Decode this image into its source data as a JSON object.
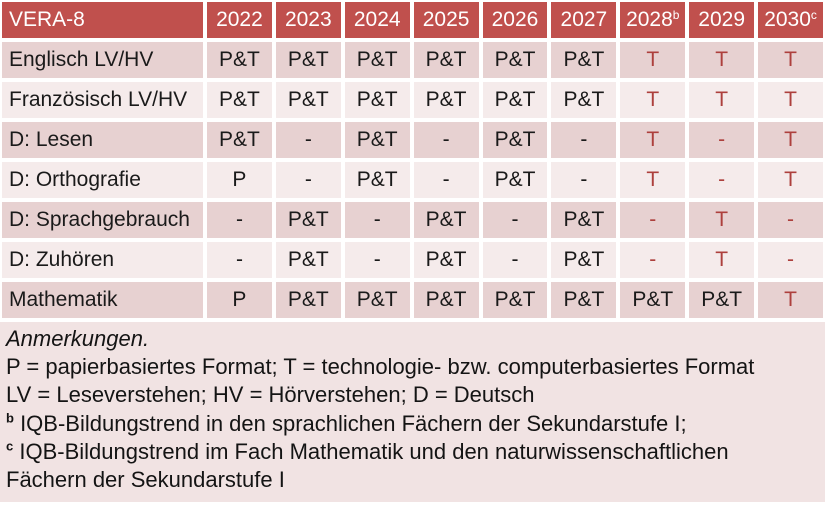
{
  "colors": {
    "header_bg": "#c0504d",
    "row_dark": "#e7d1d1",
    "row_light": "#f5ebeb",
    "notes_bg": "#f1e3e3",
    "red_text": "#ad403d",
    "body_text": "#1a1a1a"
  },
  "table": {
    "header": {
      "label": "VERA-8",
      "years": [
        {
          "text": "2022"
        },
        {
          "text": "2023"
        },
        {
          "text": "2024"
        },
        {
          "text": "2025"
        },
        {
          "text": "2026"
        },
        {
          "text": "2027"
        },
        {
          "text": "2028",
          "sup": "b"
        },
        {
          "text": "2029"
        },
        {
          "text": "2030",
          "sup": "c"
        }
      ]
    },
    "rows": [
      {
        "label": "Englisch LV/HV",
        "cells": [
          {
            "text": "P&T"
          },
          {
            "text": "P&T"
          },
          {
            "text": "P&T"
          },
          {
            "text": "P&T"
          },
          {
            "text": "P&T"
          },
          {
            "text": "P&T"
          },
          {
            "text": "T",
            "red": true
          },
          {
            "text": "T",
            "red": true
          },
          {
            "text": "T",
            "red": true
          }
        ]
      },
      {
        "label": "Französisch LV/HV",
        "cells": [
          {
            "text": "P&T"
          },
          {
            "text": "P&T"
          },
          {
            "text": "P&T"
          },
          {
            "text": "P&T"
          },
          {
            "text": "P&T"
          },
          {
            "text": "P&T"
          },
          {
            "text": "T",
            "red": true
          },
          {
            "text": "T",
            "red": true
          },
          {
            "text": "T",
            "red": true
          }
        ]
      },
      {
        "label": "D: Lesen",
        "cells": [
          {
            "text": "P&T"
          },
          {
            "text": "-"
          },
          {
            "text": "P&T"
          },
          {
            "text": "-"
          },
          {
            "text": "P&T"
          },
          {
            "text": "-"
          },
          {
            "text": "T",
            "red": true
          },
          {
            "text": "-",
            "red": true
          },
          {
            "text": "T",
            "red": true
          }
        ]
      },
      {
        "label": "D: Orthografie",
        "cells": [
          {
            "text": "P"
          },
          {
            "text": "-"
          },
          {
            "text": "P&T"
          },
          {
            "text": "-"
          },
          {
            "text": "P&T"
          },
          {
            "text": "-"
          },
          {
            "text": "T",
            "red": true
          },
          {
            "text": "-",
            "red": true
          },
          {
            "text": "T",
            "red": true
          }
        ]
      },
      {
        "label": "D: Sprachgebrauch",
        "cells": [
          {
            "text": "-"
          },
          {
            "text": "P&T"
          },
          {
            "text": "-"
          },
          {
            "text": "P&T"
          },
          {
            "text": "-"
          },
          {
            "text": "P&T"
          },
          {
            "text": "-",
            "red": true
          },
          {
            "text": "T",
            "red": true
          },
          {
            "text": "-",
            "red": true
          }
        ]
      },
      {
        "label": "D: Zuhören",
        "cells": [
          {
            "text": "-"
          },
          {
            "text": "P&T"
          },
          {
            "text": "-"
          },
          {
            "text": "P&T"
          },
          {
            "text": "-"
          },
          {
            "text": "P&T"
          },
          {
            "text": "-",
            "red": true
          },
          {
            "text": "T",
            "red": true
          },
          {
            "text": "-",
            "red": true
          }
        ]
      },
      {
        "label": "Mathematik",
        "cells": [
          {
            "text": "P"
          },
          {
            "text": "P&T"
          },
          {
            "text": "P&T"
          },
          {
            "text": "P&T"
          },
          {
            "text": "P&T"
          },
          {
            "text": "P&T"
          },
          {
            "text": "P&T"
          },
          {
            "text": "P&T"
          },
          {
            "text": "T",
            "red": true
          }
        ]
      }
    ]
  },
  "notes": {
    "lines": [
      {
        "text": "Anmerkungen.",
        "italic": true
      },
      {
        "text": "P = papierbasiertes Format; T = technologie- bzw. computerbasiertes Format"
      },
      {
        "text": "LV = Leseverstehen; HV = Hörverstehen; D = Deutsch"
      },
      {
        "sup": "b",
        "text": " IQB-Bildungstrend in den sprachlichen Fächern der Sekundarstufe I;"
      },
      {
        "sup": "c",
        "text": " IQB-Bildungstrend im Fach Mathematik und den naturwissenschaftlichen"
      },
      {
        "text": "Fächern der Sekundarstufe I"
      }
    ]
  }
}
